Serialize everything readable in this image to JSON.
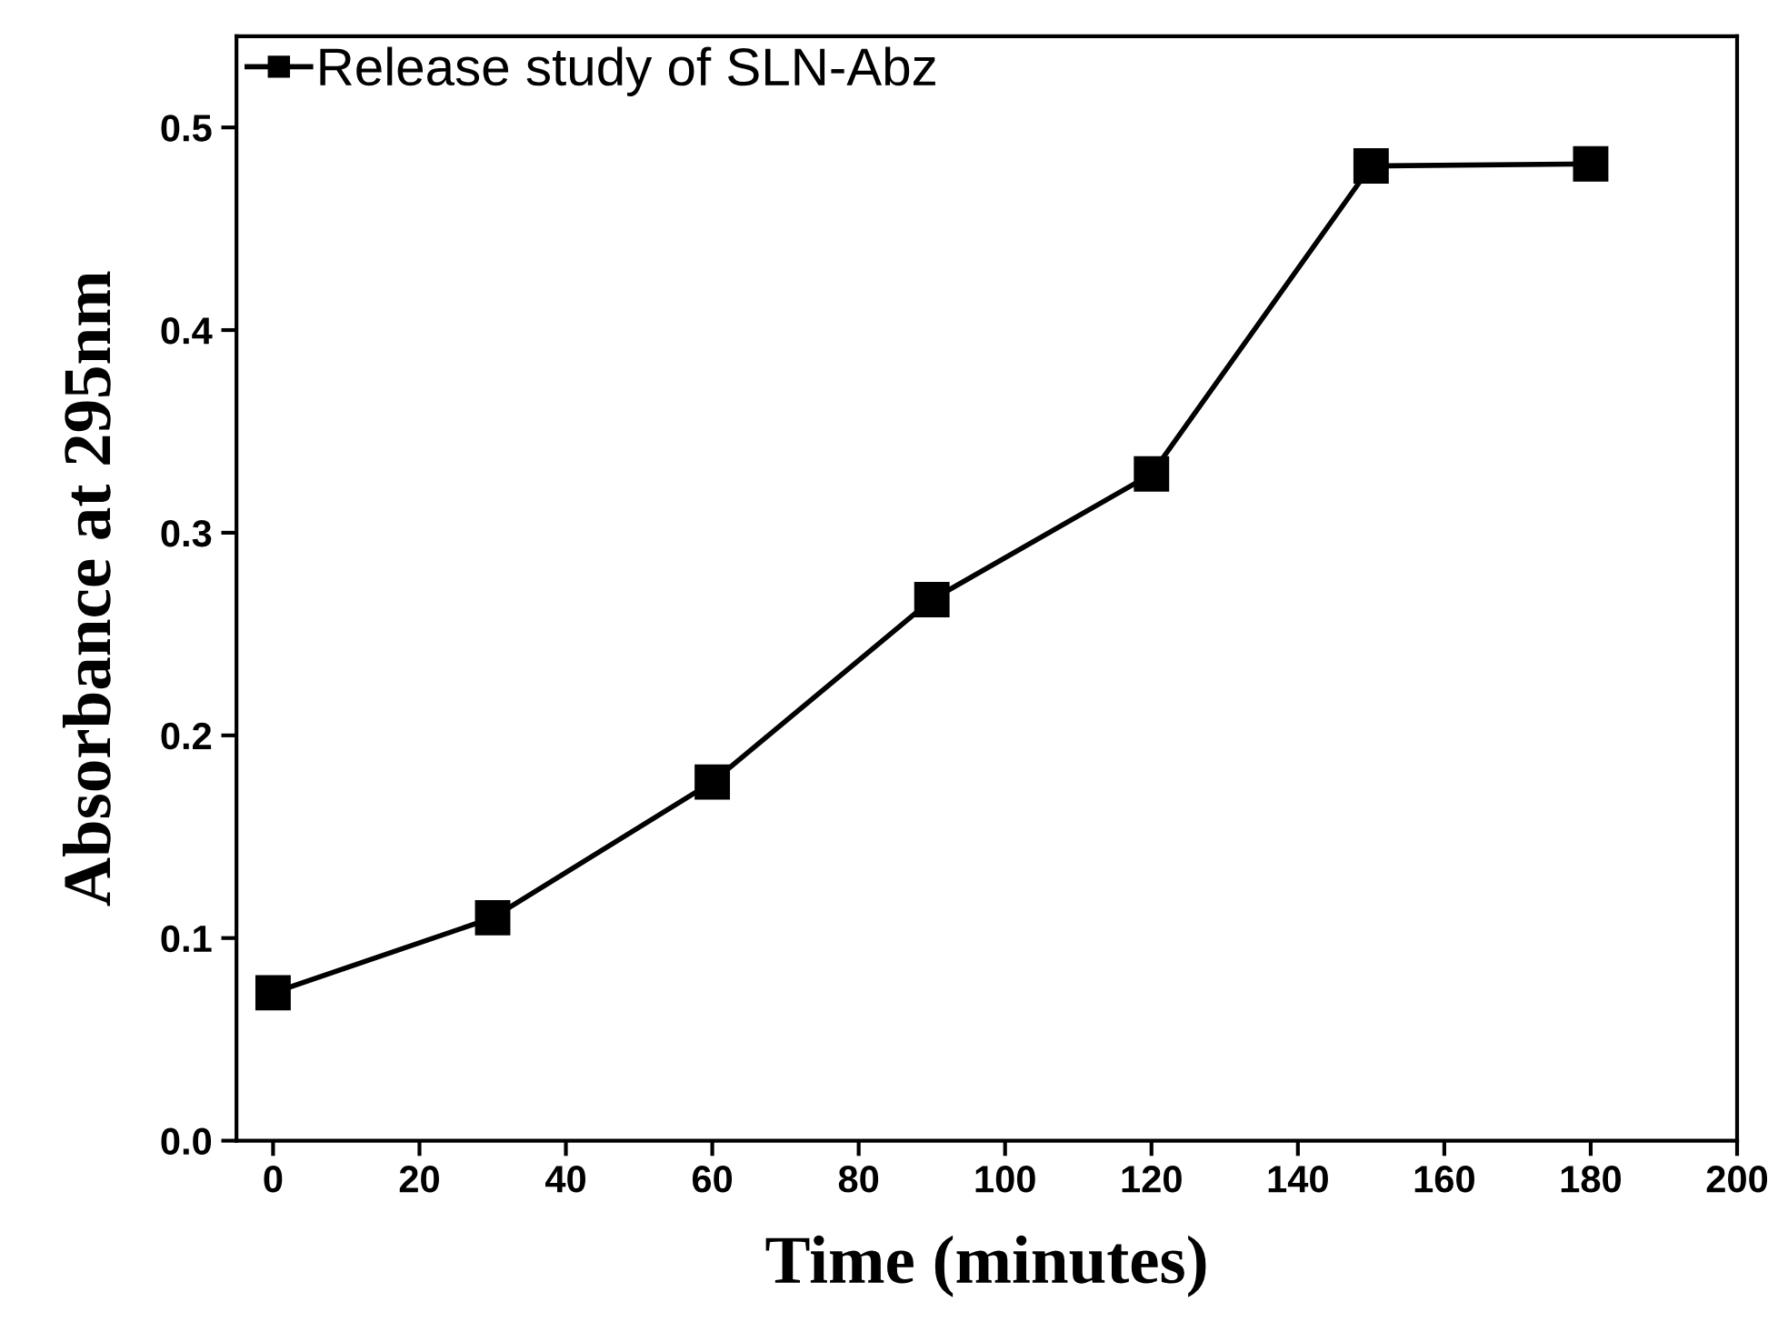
{
  "chart_data": {
    "type": "line",
    "xlabel": "Time (minutes)",
    "ylabel": "Absorbance at 295nm",
    "x": [
      0,
      30,
      60,
      90,
      120,
      150,
      180
    ],
    "series": [
      {
        "name": "Release study of SLN-Abz",
        "color": "#000000",
        "values": [
          0.073,
          0.11,
          0.177,
          0.267,
          0.329,
          0.481,
          0.482
        ]
      }
    ],
    "xlim": [
      -5,
      200
    ],
    "ylim": [
      0,
      0.545
    ],
    "xticks": [
      0,
      20,
      40,
      60,
      80,
      100,
      120,
      140,
      160,
      180,
      200
    ],
    "yticks": [
      {
        "value": 0,
        "label": "0.0"
      },
      0.1,
      0.2,
      0.3,
      0.4,
      0.5
    ],
    "marker": "square",
    "line_style": "solid",
    "grid": false,
    "legend": "top left"
  }
}
